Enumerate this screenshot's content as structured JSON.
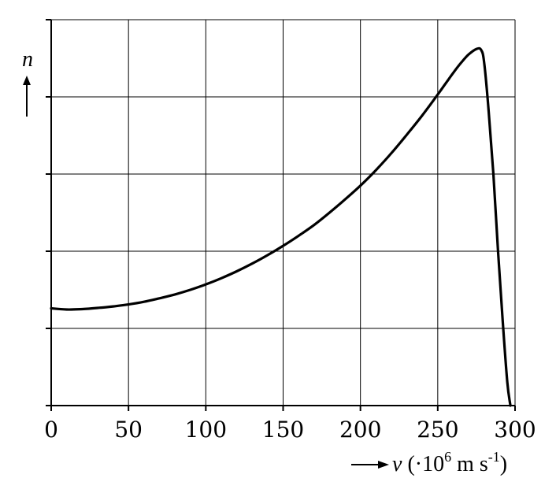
{
  "chart_data": {
    "type": "line",
    "xlabel": {
      "symbol": "v",
      "unit_prefix": " (·10",
      "unit_exp": "6",
      "unit_mid": " m s",
      "unit_exp2": "-1",
      "unit_suffix": ")"
    },
    "ylabel": "n",
    "xlim": [
      0,
      300
    ],
    "ylim": [
      0,
      5
    ],
    "x_ticks": [
      0,
      50,
      100,
      150,
      200,
      250,
      300
    ],
    "y_ticks": [
      0,
      1,
      2,
      3,
      4,
      5
    ],
    "grid": true,
    "series": [
      {
        "points": [
          [
            0,
            1.26
          ],
          [
            10,
            1.245
          ],
          [
            20,
            1.25
          ],
          [
            30,
            1.265
          ],
          [
            40,
            1.285
          ],
          [
            50,
            1.31
          ],
          [
            60,
            1.345
          ],
          [
            70,
            1.39
          ],
          [
            80,
            1.44
          ],
          [
            90,
            1.5
          ],
          [
            100,
            1.57
          ],
          [
            110,
            1.65
          ],
          [
            120,
            1.74
          ],
          [
            130,
            1.84
          ],
          [
            140,
            1.95
          ],
          [
            150,
            2.07
          ],
          [
            160,
            2.2
          ],
          [
            170,
            2.34
          ],
          [
            180,
            2.5
          ],
          [
            190,
            2.67
          ],
          [
            200,
            2.85
          ],
          [
            210,
            3.05
          ],
          [
            220,
            3.27
          ],
          [
            230,
            3.51
          ],
          [
            240,
            3.76
          ],
          [
            250,
            4.03
          ],
          [
            255,
            4.17
          ],
          [
            260,
            4.31
          ],
          [
            265,
            4.44
          ],
          [
            270,
            4.55
          ],
          [
            275,
            4.62
          ],
          [
            278,
            4.61
          ],
          [
            280,
            4.45
          ],
          [
            283,
            3.8
          ],
          [
            286,
            3.0
          ],
          [
            289,
            2.0
          ],
          [
            292,
            1.1
          ],
          [
            295,
            0.3
          ],
          [
            297,
            0
          ]
        ]
      }
    ]
  }
}
